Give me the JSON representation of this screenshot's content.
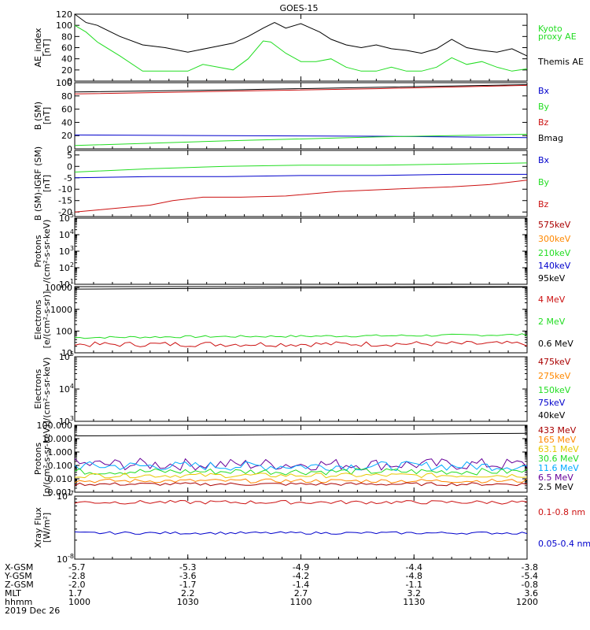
{
  "title": "GOES-15",
  "colors": {
    "black": "#000000",
    "green": "#22dd22",
    "red": "#cc1111",
    "blue": "#0000cc",
    "orange": "#ff8800",
    "yellow": "#e6c800",
    "cyan": "#00aaff",
    "violet": "#660099",
    "darkred": "#aa0000",
    "purple": "#aa00aa"
  },
  "x_axis": {
    "times": [
      "1000",
      "1030",
      "1100",
      "1130",
      "1200"
    ],
    "xrange": [
      0,
      120
    ],
    "rows": [
      {
        "label": "X-GSM",
        "values": [
          "-5.7",
          "-5.3",
          "-4.9",
          "-4.4",
          "-3.8"
        ]
      },
      {
        "label": "Y-GSM",
        "values": [
          "-2.8",
          "-3.6",
          "-4.2",
          "-4.8",
          "-5.4"
        ]
      },
      {
        "label": "Z-GSM",
        "values": [
          "-2.0",
          "-1.7",
          "-1.4",
          "-1.1",
          "-0.8"
        ]
      },
      {
        "label": "MLT",
        "values": [
          "1.7",
          "2.2",
          "2.7",
          "3.2",
          "3.6"
        ]
      },
      {
        "label": "hhmm",
        "values": [
          "1000",
          "1030",
          "1100",
          "1130",
          "1200"
        ]
      }
    ],
    "date": "2019 Dec 26"
  },
  "chart_data": [
    {
      "type": "line",
      "ylabel": [
        "AE_index",
        "[nT]"
      ],
      "ylim": [
        0,
        120
      ],
      "ticks": [
        0,
        20,
        40,
        60,
        80,
        100,
        120
      ],
      "legend": [
        {
          "text": "Kyoto",
          "color": "#22dd22"
        },
        {
          "text": "proxy AE",
          "color": "#22dd22"
        },
        {
          "text": "Themis AE",
          "color": "#000000"
        }
      ],
      "series": [
        {
          "name": "Themis AE",
          "color": "#000000",
          "x": [
            0,
            3,
            6,
            12,
            18,
            24,
            30,
            36,
            42,
            46,
            50,
            53,
            56,
            60,
            62,
            65,
            68,
            72,
            76,
            80,
            84,
            88,
            92,
            96,
            100,
            104,
            108,
            112,
            116,
            120
          ],
          "y": [
            120,
            105,
            100,
            80,
            65,
            60,
            52,
            60,
            68,
            80,
            95,
            105,
            95,
            103,
            97,
            88,
            75,
            65,
            60,
            65,
            58,
            55,
            50,
            58,
            75,
            60,
            55,
            52,
            58,
            45
          ]
        },
        {
          "name": "Kyoto proxy AE",
          "color": "#22dd22",
          "x": [
            0,
            3,
            6,
            12,
            18,
            24,
            30,
            34,
            38,
            42,
            46,
            50,
            52,
            56,
            60,
            64,
            68,
            72,
            76,
            80,
            84,
            88,
            92,
            96,
            100,
            104,
            108,
            112,
            116,
            120
          ],
          "y": [
            100,
            88,
            70,
            45,
            18,
            18,
            18,
            30,
            25,
            20,
            40,
            72,
            70,
            50,
            35,
            35,
            40,
            25,
            18,
            18,
            25,
            18,
            18,
            25,
            42,
            30,
            35,
            25,
            18,
            22
          ]
        }
      ]
    },
    {
      "type": "line",
      "ylabel": [
        "B (SM)",
        "[nT]"
      ],
      "ylim": [
        0,
        100
      ],
      "ticks": [
        0,
        20,
        40,
        60,
        80,
        100
      ],
      "legend": [
        {
          "text": "Bx",
          "color": "#0000cc"
        },
        {
          "text": "By",
          "color": "#22dd22"
        },
        {
          "text": "Bz",
          "color": "#cc1111"
        },
        {
          "text": "Bmag",
          "color": "#000000"
        }
      ],
      "series": [
        {
          "name": "Bmag",
          "color": "#000000",
          "x": [
            0,
            40,
            80,
            120
          ],
          "y": [
            86,
            89,
            93,
            97
          ]
        },
        {
          "name": "Bz",
          "color": "#cc1111",
          "x": [
            0,
            40,
            80,
            120
          ],
          "y": [
            83,
            87,
            91,
            96
          ]
        },
        {
          "name": "Bx",
          "color": "#0000cc",
          "x": [
            0,
            40,
            80,
            120
          ],
          "y": [
            21,
            20,
            19,
            17
          ]
        },
        {
          "name": "By",
          "color": "#22dd22",
          "x": [
            0,
            40,
            80,
            120
          ],
          "y": [
            5,
            12,
            18,
            22
          ]
        }
      ]
    },
    {
      "type": "line",
      "ylabel": [
        "B (SM)-IGRF (SM)",
        "[nT]"
      ],
      "ylim": [
        -22,
        7
      ],
      "ticks": [
        -20,
        -15,
        -10,
        -5,
        0,
        5
      ],
      "legend": [
        {
          "text": "Bx",
          "color": "#0000cc"
        },
        {
          "text": "By",
          "color": "#22dd22"
        },
        {
          "text": "Bz",
          "color": "#cc1111"
        }
      ],
      "series": [
        {
          "name": "By",
          "color": "#22dd22",
          "x": [
            0,
            20,
            40,
            60,
            80,
            100,
            120
          ],
          "y": [
            -2.5,
            -1,
            0,
            0.5,
            0.5,
            1,
            1.5
          ]
        },
        {
          "name": "Bx",
          "color": "#0000cc",
          "x": [
            0,
            20,
            40,
            60,
            80,
            100,
            120
          ],
          "y": [
            -5,
            -4.5,
            -4.5,
            -4,
            -4,
            -3.5,
            -3.5
          ]
        },
        {
          "name": "Bz",
          "color": "#cc1111",
          "x": [
            0,
            10,
            20,
            26,
            34,
            44,
            56,
            70,
            84,
            100,
            110,
            120
          ],
          "y": [
            -20,
            -18.5,
            -17,
            -15,
            -13.5,
            -13.5,
            -13,
            -11,
            -10,
            -9,
            -8,
            -6
          ]
        }
      ]
    },
    {
      "type": "line",
      "ylabel": [
        "Protons",
        "/(cm²-s-sr-keV)"
      ],
      "yscale": "log",
      "ylim": [
        10,
        100000
      ],
      "ticks": [
        1,
        2,
        3,
        4,
        5
      ],
      "legend": [
        {
          "text": "575keV",
          "color": "#aa0000"
        },
        {
          "text": "300keV",
          "color": "#ff8800"
        },
        {
          "text": "210keV",
          "color": "#22dd22"
        },
        {
          "text": "140keV",
          "color": "#0000cc"
        },
        {
          "text": "95keV",
          "color": "#000000"
        }
      ],
      "series": []
    },
    {
      "type": "line",
      "ylabel": [
        "Electrons",
        "[e/(cm²-s-sr)]"
      ],
      "yscale": "log",
      "ylim": [
        10,
        11000
      ],
      "ticks_text": [
        "10",
        "100",
        "1000",
        "10000"
      ],
      "legend": [
        {
          "text": "4 MeV",
          "color": "#cc1111"
        },
        {
          "text": "2 MeV",
          "color": "#22dd22"
        },
        {
          "text": "0.6 MeV",
          "color": "#000000"
        }
      ],
      "series": [
        {
          "name": "0.6 MeV",
          "color": "#000000",
          "x": [
            0,
            30,
            60,
            90,
            120
          ],
          "y": [
            8500,
            9000,
            9500,
            10000,
            10500
          ]
        },
        {
          "name": "2 MeV",
          "color": "#22dd22",
          "x": [
            0,
            30,
            60,
            90,
            120
          ],
          "y": [
            50,
            55,
            58,
            62,
            68
          ],
          "noise": 0.05
        },
        {
          "name": "4 MeV",
          "color": "#cc1111",
          "x": [
            0,
            30,
            60,
            90,
            120
          ],
          "y": [
            24,
            25,
            25,
            26,
            26
          ],
          "noise": 0.12
        }
      ]
    },
    {
      "type": "line",
      "ylabel": [
        "Electrons",
        "/(cm²-s-sr-keV)"
      ],
      "yscale": "log",
      "ylim": [
        1000,
        100000
      ],
      "ticks": [
        3,
        4,
        5
      ],
      "legend": [
        {
          "text": "475keV",
          "color": "#aa0000"
        },
        {
          "text": "275keV",
          "color": "#ff8800"
        },
        {
          "text": "150keV",
          "color": "#22dd22"
        },
        {
          "text": "75keV",
          "color": "#0000cc"
        },
        {
          "text": "40keV",
          "color": "#000000"
        }
      ],
      "series": []
    },
    {
      "type": "line",
      "ylabel": [
        "Protons",
        "[p/(cm²-s-sr-keV)]"
      ],
      "yscale": "log",
      "ylim": [
        0.001,
        100
      ],
      "ticks_text": [
        "0.001",
        "0.010",
        "0.100",
        "1.000",
        "10.000",
        "100.000"
      ],
      "legend": [
        {
          "text": "433 MeV",
          "color": "#aa0000"
        },
        {
          "text": "165 MeV",
          "color": "#ff8800"
        },
        {
          "text": "63.1 MeV",
          "color": "#e6c800"
        },
        {
          "text": "30.6 MeV",
          "color": "#22dd22"
        },
        {
          "text": "11.6 MeV",
          "color": "#00aaff"
        },
        {
          "text": "6.5 MeV",
          "color": "#660099"
        },
        {
          "text": "2.5 MeV",
          "color": "#000000"
        }
      ],
      "series": [
        {
          "name": "2.5 MeV",
          "color": "#000000",
          "x": [
            0,
            30,
            60,
            90,
            120
          ],
          "y": [
            16,
            18,
            20,
            22,
            25
          ]
        },
        {
          "name": "6.5 MeV",
          "color": "#660099",
          "x": [
            0,
            60,
            120
          ],
          "y": [
            0.12,
            0.12,
            0.12
          ],
          "noise": 0.45
        },
        {
          "name": "11.6 MeV",
          "color": "#00aaff",
          "x": [
            0,
            60,
            120
          ],
          "y": [
            0.09,
            0.09,
            0.09
          ],
          "noise": 0.35
        },
        {
          "name": "30.6 MeV",
          "color": "#22dd22",
          "x": [
            0,
            60,
            120
          ],
          "y": [
            0.035,
            0.035,
            0.035
          ],
          "noise": 0.25
        },
        {
          "name": "63.1 MeV",
          "color": "#e6c800",
          "x": [
            0,
            60,
            120
          ],
          "y": [
            0.018,
            0.018,
            0.018
          ],
          "noise": 0.18
        },
        {
          "name": "165 MeV",
          "color": "#ff8800",
          "x": [
            0,
            60,
            120
          ],
          "y": [
            0.007,
            0.007,
            0.007
          ],
          "noise": 0.15
        },
        {
          "name": "433 MeV",
          "color": "#aa0000",
          "x": [
            0,
            60,
            120
          ],
          "y": [
            0.004,
            0.004,
            0.004
          ],
          "noise": 0.12
        }
      ]
    },
    {
      "type": "line",
      "ylabel": [
        "Xray Flux",
        "[W/m²]"
      ],
      "yscale": "log",
      "ylim": [
        1e-08,
        1e-07
      ],
      "ticks": [
        -8,
        -7
      ],
      "legend": [
        {
          "text": "0.1-0.8 nm",
          "color": "#cc1111"
        },
        {
          "text": "0.05-0.4 nm",
          "color": "#0000cc"
        }
      ],
      "series": [
        {
          "name": "0.1-0.8 nm",
          "color": "#cc1111",
          "x": [
            0,
            60,
            120
          ],
          "y": [
            8e-08,
            8e-08,
            8e-08
          ],
          "noise": 0.03
        },
        {
          "name": "0.05-0.4 nm",
          "color": "#0000cc",
          "x": [
            0,
            60,
            120
          ],
          "y": [
            2.6e-08,
            2.6e-08,
            2.6e-08
          ],
          "noise": 0.02
        }
      ]
    }
  ]
}
